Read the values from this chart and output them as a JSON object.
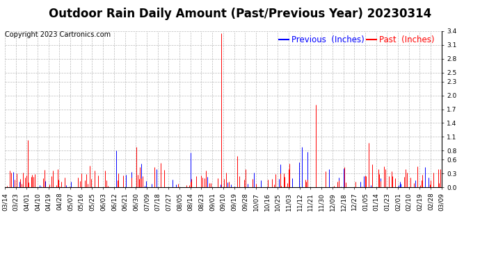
{
  "title": "Outdoor Rain Daily Amount (Past/Previous Year) 20230314",
  "copyright": "Copyright 2023 Cartronics.com",
  "legend_previous": "Previous  (Inches)",
  "legend_past": "Past  (Inches)",
  "color_previous": "blue",
  "color_past": "red",
  "background_color": "#ffffff",
  "grid_color": "#aaaaaa",
  "yticks": [
    0.0,
    0.3,
    0.6,
    0.8,
    1.1,
    1.4,
    1.7,
    2.0,
    2.3,
    2.5,
    2.8,
    3.1,
    3.4
  ],
  "title_fontsize": 12,
  "tick_fontsize": 6.5,
  "legend_fontsize": 8.5,
  "copyright_fontsize": 7,
  "num_days": 366,
  "xtick_labels": [
    "03/14",
    "03/23",
    "04/01",
    "04/10",
    "04/19",
    "04/28",
    "05/07",
    "05/16",
    "05/25",
    "06/03",
    "06/12",
    "06/21",
    "06/30",
    "07/09",
    "07/18",
    "07/27",
    "08/05",
    "08/14",
    "08/23",
    "09/01",
    "09/10",
    "09/19",
    "09/28",
    "10/07",
    "10/16",
    "10/25",
    "11/03",
    "11/12",
    "11/21",
    "11/30",
    "12/09",
    "12/18",
    "12/27",
    "01/05",
    "01/14",
    "01/23",
    "02/01",
    "02/10",
    "02/19",
    "02/28",
    "03/09"
  ]
}
